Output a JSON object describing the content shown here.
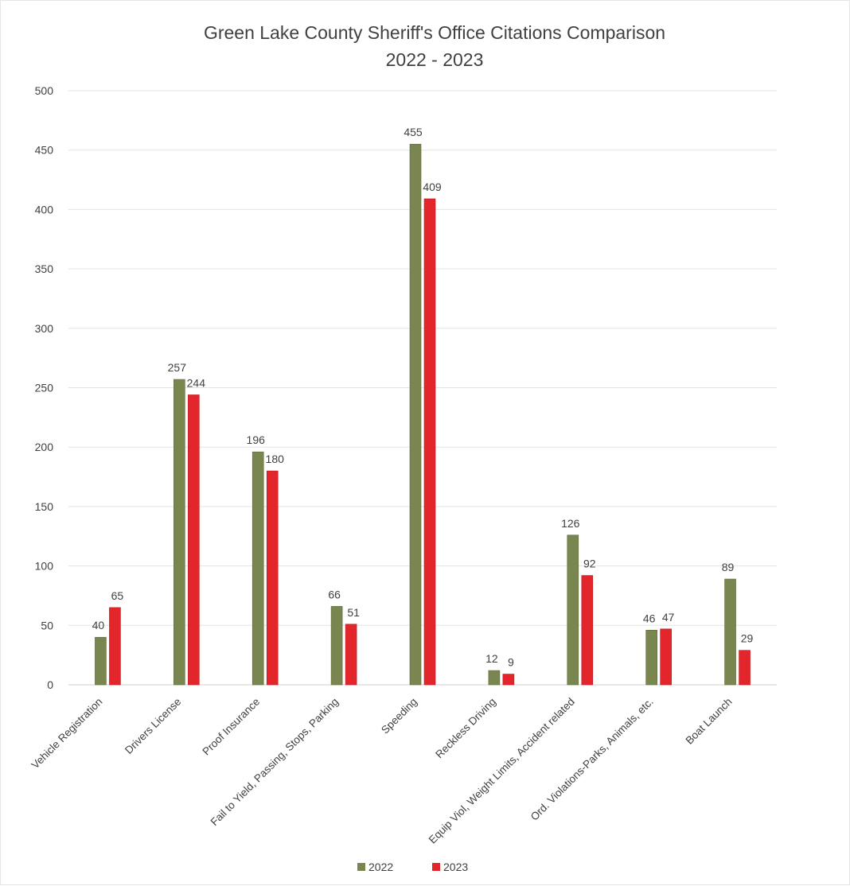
{
  "chart_data": {
    "type": "bar",
    "title": "Green Lake County Sheriff's Office Citations Comparison",
    "subtitle": "2022 - 2023",
    "categories": [
      "Vehicle Registration",
      "Drivers License",
      "Proof Insurance",
      "Fail to Yield, Passing, Stops, Parking",
      "Speeding",
      "Reckless Driving",
      "Equip Viol, Weight Limits, Accident related",
      "Ord. Violations-Parks, Animals, etc.",
      "Boat Launch"
    ],
    "series": [
      {
        "name": "2022",
        "color": "#7a8650",
        "values": [
          40,
          257,
          196,
          66,
          455,
          12,
          126,
          46,
          89
        ]
      },
      {
        "name": "2023",
        "color": "#e2262b",
        "values": [
          65,
          244,
          180,
          51,
          409,
          9,
          92,
          47,
          29
        ]
      }
    ],
    "ylim": [
      0,
      500
    ],
    "yticks": [
      0,
      50,
      100,
      150,
      200,
      250,
      300,
      350,
      400,
      450,
      500
    ],
    "xlabel": "",
    "ylabel": "",
    "grid": true,
    "legend": "bottom"
  }
}
